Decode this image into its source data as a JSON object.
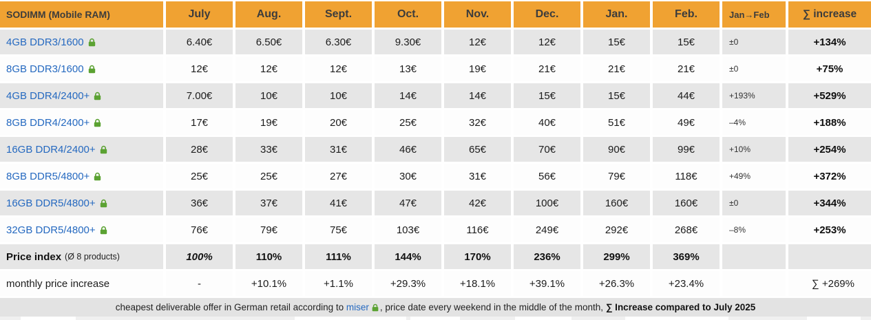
{
  "colors": {
    "header_bg": "#f0a232",
    "row_alt_bg": "#e6e6e6",
    "link_blue": "#2569c0",
    "lock_green": "#5ba232",
    "footer_bg": "#e3e3e3"
  },
  "table": {
    "header": {
      "label": "SODIMM (Mobile RAM)",
      "months": [
        "July",
        "Aug.",
        "Sept.",
        "Oct.",
        "Nov.",
        "Dec.",
        "Jan.",
        "Feb."
      ],
      "jan_feb": "Jan→Feb",
      "sum": "∑ increase"
    },
    "rows": [
      {
        "label": "4GB DDR3/1600",
        "values": [
          "6.40€",
          "6.50€",
          "6.30€",
          "9.30€",
          "12€",
          "12€",
          "15€",
          "15€"
        ],
        "jan_feb": "±0",
        "sum": "+134%"
      },
      {
        "label": "8GB DDR3/1600",
        "values": [
          "12€",
          "12€",
          "12€",
          "13€",
          "19€",
          "21€",
          "21€",
          "21€"
        ],
        "jan_feb": "±0",
        "sum": "+75%"
      },
      {
        "label": "4GB DDR4/2400+",
        "values": [
          "7.00€",
          "10€",
          "10€",
          "14€",
          "14€",
          "15€",
          "15€",
          "44€"
        ],
        "jan_feb": "+193%",
        "sum": "+529%"
      },
      {
        "label": "8GB DDR4/2400+",
        "values": [
          "17€",
          "19€",
          "20€",
          "25€",
          "32€",
          "40€",
          "51€",
          "49€"
        ],
        "jan_feb": "–4%",
        "sum": "+188%"
      },
      {
        "label": "16GB DDR4/2400+",
        "values": [
          "28€",
          "33€",
          "31€",
          "46€",
          "65€",
          "70€",
          "90€",
          "99€"
        ],
        "jan_feb": "+10%",
        "sum": "+254%"
      },
      {
        "label": "8GB DDR5/4800+",
        "values": [
          "25€",
          "25€",
          "27€",
          "30€",
          "31€",
          "56€",
          "79€",
          "118€"
        ],
        "jan_feb": "+49%",
        "sum": "+372%"
      },
      {
        "label": "16GB DDR5/4800+",
        "values": [
          "36€",
          "37€",
          "41€",
          "47€",
          "42€",
          "100€",
          "160€",
          "160€"
        ],
        "jan_feb": "±0",
        "sum": "+344%"
      },
      {
        "label": "32GB DDR5/4800+",
        "values": [
          "76€",
          "79€",
          "75€",
          "103€",
          "116€",
          "249€",
          "292€",
          "268€"
        ],
        "jan_feb": "–8%",
        "sum": "+253%"
      }
    ],
    "price_index": {
      "label": "Price index",
      "label_note": "(Ø 8 products)",
      "values": [
        "100%",
        "110%",
        "111%",
        "144%",
        "170%",
        "236%",
        "299%",
        "369%"
      ]
    },
    "monthly": {
      "label": "monthly price increase",
      "values": [
        "-",
        "+10.1%",
        "+1.1%",
        "+29.3%",
        "+18.1%",
        "+39.1%",
        "+26.3%",
        "+23.4%"
      ],
      "sum": "∑ +269%"
    }
  },
  "footer": {
    "text_before_link": "cheapest deliverable offer in German retail according to ",
    "link": "miser",
    "text_after_link": ", price date every weekend in the middle of the month, ",
    "bold_text": "∑ Increase compared to July 2025"
  },
  "chart_data": {
    "type": "table",
    "title": "SODIMM (Mobile RAM)",
    "categories": [
      "July",
      "Aug.",
      "Sept.",
      "Oct.",
      "Nov.",
      "Dec.",
      "Jan.",
      "Feb."
    ],
    "series": [
      {
        "name": "4GB DDR3/1600",
        "values_eur": [
          6.4,
          6.5,
          6.3,
          9.3,
          12,
          12,
          15,
          15
        ],
        "jan_feb_change": "±0",
        "total_increase": "+134%"
      },
      {
        "name": "8GB DDR3/1600",
        "values_eur": [
          12,
          12,
          12,
          13,
          19,
          21,
          21,
          21
        ],
        "jan_feb_change": "±0",
        "total_increase": "+75%"
      },
      {
        "name": "4GB DDR4/2400+",
        "values_eur": [
          7.0,
          10,
          10,
          14,
          14,
          15,
          15,
          44
        ],
        "jan_feb_change": "+193%",
        "total_increase": "+529%"
      },
      {
        "name": "8GB DDR4/2400+",
        "values_eur": [
          17,
          19,
          20,
          25,
          32,
          40,
          51,
          49
        ],
        "jan_feb_change": "-4%",
        "total_increase": "+188%"
      },
      {
        "name": "16GB DDR4/2400+",
        "values_eur": [
          28,
          33,
          31,
          46,
          65,
          70,
          90,
          99
        ],
        "jan_feb_change": "+10%",
        "total_increase": "+254%"
      },
      {
        "name": "8GB DDR5/4800+",
        "values_eur": [
          25,
          25,
          27,
          30,
          31,
          56,
          79,
          118
        ],
        "jan_feb_change": "+49%",
        "total_increase": "+372%"
      },
      {
        "name": "16GB DDR5/4800+",
        "values_eur": [
          36,
          37,
          41,
          47,
          42,
          100,
          160,
          160
        ],
        "jan_feb_change": "±0",
        "total_increase": "+344%"
      },
      {
        "name": "32GB DDR5/4800+",
        "values_eur": [
          76,
          79,
          75,
          103,
          116,
          249,
          292,
          268
        ],
        "jan_feb_change": "-8%",
        "total_increase": "+253%"
      }
    ],
    "price_index_pct": [
      100,
      110,
      111,
      144,
      170,
      236,
      299,
      369
    ],
    "monthly_increase_pct": [
      "-",
      "+10.1%",
      "+1.1%",
      "+29.3%",
      "+18.1%",
      "+39.1%",
      "+26.3%",
      "+23.4%"
    ],
    "total_increase_sum": "∑ +269%",
    "footnote": "cheapest deliverable offer in German retail according to miser, price date every weekend in the middle of the month, ∑ Increase compared to July 2025"
  }
}
